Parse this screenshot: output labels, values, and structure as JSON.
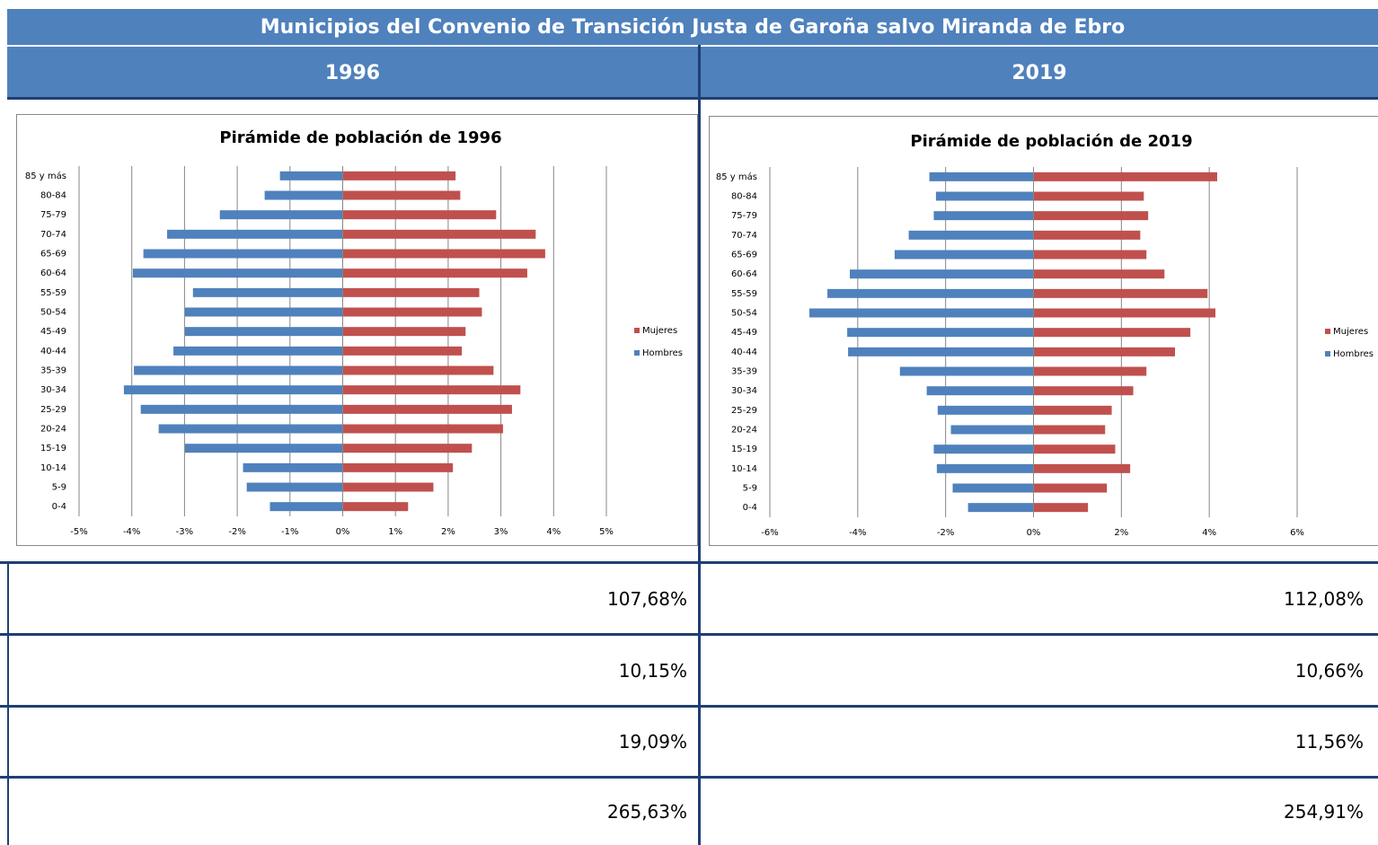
{
  "header": {
    "title": "Municipios del Convenio de Transición Justa de Garoña salvo Miranda de Ebro",
    "columns": [
      "1996",
      "2019"
    ]
  },
  "chart_data": [
    {
      "type": "bar",
      "title": "Pirámide de población de 1996",
      "categories": [
        "85 y más",
        "80-84",
        "75-79",
        "70-74",
        "65-69",
        "60-64",
        "55-59",
        "50-54",
        "45-49",
        "40-44",
        "35-39",
        "30-34",
        "25-29",
        "20-24",
        "15-19",
        "10-14",
        "5-9",
        "0-4"
      ],
      "series": [
        {
          "name": "Mujeres",
          "color": "#c0504d",
          "values": [
            2.14,
            2.23,
            2.91,
            3.66,
            3.84,
            3.5,
            2.59,
            2.64,
            2.33,
            2.26,
            2.86,
            3.37,
            3.21,
            3.04,
            2.45,
            2.09,
            1.72,
            1.24
          ]
        },
        {
          "name": "Hombres",
          "color": "#4f81bd",
          "values": [
            -1.19,
            -1.48,
            -2.33,
            -3.33,
            -3.78,
            -3.98,
            -2.84,
            -2.99,
            -2.99,
            -3.21,
            -3.96,
            -4.15,
            -3.83,
            -3.49,
            -2.99,
            -1.89,
            -1.82,
            -1.38
          ]
        }
      ],
      "xlim": [
        -5,
        5
      ],
      "xticks": [
        {
          "value": -5,
          "label": "-5%"
        },
        {
          "value": -4,
          "label": "-4%"
        },
        {
          "value": -3,
          "label": "-3%"
        },
        {
          "value": -2,
          "label": "-2%"
        },
        {
          "value": -1,
          "label": "-1%"
        },
        {
          "value": 0,
          "label": "0%"
        },
        {
          "value": 1,
          "label": "1%"
        },
        {
          "value": 2,
          "label": "2%"
        },
        {
          "value": 3,
          "label": "3%"
        },
        {
          "value": 4,
          "label": "4%"
        },
        {
          "value": 5,
          "label": "5%"
        }
      ],
      "grid": true,
      "legend": "right"
    },
    {
      "type": "bar",
      "title": "Pirámide de población de 2019",
      "categories": [
        "85 y más",
        "80-84",
        "75-79",
        "70-74",
        "65-69",
        "60-64",
        "55-59",
        "50-54",
        "45-49",
        "40-44",
        "35-39",
        "30-34",
        "25-29",
        "20-24",
        "15-19",
        "10-14",
        "5-9",
        "0-4"
      ],
      "series": [
        {
          "name": "Mujeres",
          "color": "#c0504d",
          "values": [
            4.18,
            2.51,
            2.61,
            2.43,
            2.57,
            2.98,
            3.96,
            4.14,
            3.57,
            3.22,
            2.57,
            2.27,
            1.78,
            1.63,
            1.86,
            2.2,
            1.67,
            1.24
          ]
        },
        {
          "name": "Hombres",
          "color": "#4f81bd",
          "values": [
            -2.37,
            -2.22,
            -2.27,
            -2.84,
            -3.16,
            -4.18,
            -4.69,
            -5.1,
            -4.24,
            -4.22,
            -3.04,
            -2.43,
            -2.18,
            -1.88,
            -2.27,
            -2.2,
            -1.84,
            -1.49
          ]
        }
      ],
      "xlim": [
        -6,
        6
      ],
      "xticks": [
        {
          "value": -6,
          "label": "-6%"
        },
        {
          "value": -4,
          "label": "-4%"
        },
        {
          "value": -2,
          "label": "-2%"
        },
        {
          "value": 0,
          "label": "0%"
        },
        {
          "value": 2,
          "label": "2%"
        },
        {
          "value": 4,
          "label": "4%"
        },
        {
          "value": 6,
          "label": "6%"
        }
      ],
      "grid": true,
      "legend": "right"
    }
  ],
  "table": {
    "rows": [
      [
        "107,68%",
        "112,08%"
      ],
      [
        "10,15%",
        "10,66%"
      ],
      [
        "19,09%",
        "11,56%"
      ],
      [
        "265,63%",
        "254,91%"
      ]
    ]
  }
}
